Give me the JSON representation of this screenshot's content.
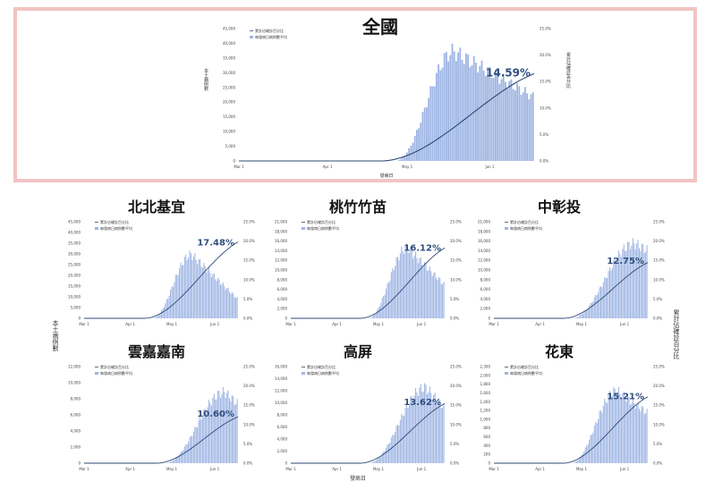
{
  "colors": {
    "bar": "#9db4e3",
    "line": "#2c4a78",
    "pct": "#2f4f7f",
    "frame": "#f2c4c4"
  },
  "shared_labels": {
    "y_left": "本土病例數",
    "y_right": "累計佔確診百分比",
    "x": "發病日"
  },
  "chart_data": [
    {
      "id": "national",
      "type": "bar+line",
      "title": "全國",
      "legend": [
        "累計佔確診百分比",
        "每發病日病例數平均"
      ],
      "ylabel": "本土病例數",
      "y2label": "累計佔確診百分比",
      "xlabel": "發病日",
      "x_ticks": [
        "Mar 1",
        "Apr 1",
        "May 1",
        "Jun 1"
      ],
      "y_ticks": [
        "0",
        "5,000",
        "10,000",
        "15,000",
        "20,000",
        "25,000",
        "30,000",
        "35,000",
        "40,000",
        "45,000"
      ],
      "y2_ticks": [
        "0.0%",
        "5.0%",
        "10.0%",
        "15.0%",
        "20.0%",
        "25.0%"
      ],
      "ylim": [
        0,
        45000
      ],
      "y2lim": [
        0,
        25
      ],
      "peak_value": 40000,
      "peak_x": 0.73,
      "rise_start": 0.53,
      "end_value": 23500,
      "final_pct": 14.59,
      "final_label": "14.59%"
    },
    {
      "id": "bbjy",
      "type": "bar+line",
      "title": "北北基宜",
      "legend": [
        "累計佔確診百分比",
        "每發病日病例數平均"
      ],
      "x_ticks": [
        "Mar 1",
        "Apr 1",
        "May 1",
        "Jun 1"
      ],
      "y_ticks": [
        "0",
        "5,000",
        "10,000",
        "15,000",
        "20,000",
        "25,000",
        "30,000",
        "35,000",
        "40,000",
        "45,000"
      ],
      "y2_ticks": [
        "0.0%",
        "5.0%",
        "10.0%",
        "15.0%",
        "20.0%",
        "25.0%"
      ],
      "ylim": [
        0,
        45000
      ],
      "y2lim": [
        0,
        25
      ],
      "peak_value": 32000,
      "peak_x": 0.7,
      "rise_start": 0.44,
      "end_value": 10000,
      "final_pct": 17.48,
      "final_label": "17.48%"
    },
    {
      "id": "tzzm",
      "type": "bar+line",
      "title": "桃竹竹苗",
      "legend": [
        "累計佔確診百分比",
        "每發病日病例數平均"
      ],
      "x_ticks": [
        "Mar 1",
        "Apr 1",
        "May 1",
        "Jun 1"
      ],
      "y_ticks": [
        "0",
        "2,000",
        "4,000",
        "6,000",
        "8,000",
        "10,000",
        "12,000",
        "14,000",
        "16,000",
        "18,000",
        "21,000"
      ],
      "y2_ticks": [
        "0.0%",
        "5.0%",
        "10.0%",
        "15.0%",
        "20.0%",
        "25.0%"
      ],
      "ylim": [
        0,
        21000
      ],
      "y2lim": [
        0,
        25
      ],
      "peak_value": 16500,
      "peak_x": 0.76,
      "rise_start": 0.5,
      "end_value": 8000,
      "final_pct": 16.12,
      "final_label": "16.12%"
    },
    {
      "id": "zzt",
      "type": "bar+line",
      "title": "中彰投",
      "legend": [
        "累計佔確診百分比",
        "每發病日病例數平均"
      ],
      "x_ticks": [
        "Mar 1",
        "Apr 1",
        "May 1",
        "Jun 1"
      ],
      "y_ticks": [
        "0",
        "2,000",
        "4,000",
        "6,000",
        "8,000",
        "10,000",
        "12,000",
        "14,000",
        "16,000",
        "18,000",
        "21,000"
      ],
      "y2_ticks": [
        "0.0%",
        "5.0%",
        "10.0%",
        "15.0%",
        "20.0%",
        "25.0%"
      ],
      "ylim": [
        0,
        21000
      ],
      "y2lim": [
        0,
        25
      ],
      "peak_value": 17500,
      "peak_x": 0.92,
      "rise_start": 0.5,
      "end_value": 16000,
      "final_pct": 12.75,
      "final_label": "12.75%"
    },
    {
      "id": "yjjn",
      "type": "bar+line",
      "title": "雲嘉嘉南",
      "legend": [
        "累計佔確診百分比",
        "每發病日病例數平均"
      ],
      "x_ticks": [
        "Mar 1",
        "Apr 1",
        "May 1",
        "Jun 1"
      ],
      "y_ticks": [
        "0",
        "2,000",
        "4,000",
        "6,000",
        "8,000",
        "10,000",
        "12,000"
      ],
      "y2_ticks": [
        "0.0%",
        "5.0%",
        "10.0%",
        "15.0%",
        "20.0%",
        "25.0%"
      ],
      "ylim": [
        0,
        12000
      ],
      "y2lim": [
        0,
        25
      ],
      "peak_value": 9500,
      "peak_x": 0.92,
      "rise_start": 0.52,
      "end_value": 8000,
      "final_pct": 10.6,
      "final_label": "10.60%"
    },
    {
      "id": "gp",
      "type": "bar+line",
      "title": "高屏",
      "legend": [
        "累計佔確診百分比",
        "每發病日病例數平均"
      ],
      "x_ticks": [
        "Mar 1",
        "Apr 1",
        "May 1",
        "Jun 1"
      ],
      "y_ticks": [
        "0",
        "2,000",
        "4,000",
        "6,000",
        "8,000",
        "10,000",
        "12,000",
        "14,000",
        "16,000"
      ],
      "y2_ticks": [
        "0.0%",
        "5.0%",
        "10.0%",
        "15.0%",
        "20.0%",
        "25.0%"
      ],
      "ylim": [
        0,
        16000
      ],
      "y2lim": [
        0,
        25
      ],
      "peak_value": 13500,
      "peak_x": 0.88,
      "rise_start": 0.5,
      "end_value": 10000,
      "final_pct": 13.62,
      "final_label": "13.62%"
    },
    {
      "id": "hd",
      "type": "bar+line",
      "title": "花東",
      "legend": [
        "累計佔確診百分比",
        "每發病日病例數平均"
      ],
      "x_ticks": [
        "Mar 1",
        "Apr 1",
        "May 1",
        "Jun 1"
      ],
      "y_ticks": [
        "0",
        "200",
        "400",
        "600",
        "800",
        "1,000",
        "1,200",
        "1,400",
        "1,600",
        "1,800",
        "2,000",
        "2,300"
      ],
      "y2_ticks": [
        "0.0%",
        "5.0%",
        "10.0%",
        "15.0%",
        "20.0%",
        "25.0%"
      ],
      "ylim": [
        0,
        2300
      ],
      "y2lim": [
        0,
        25
      ],
      "peak_value": 1850,
      "peak_x": 0.8,
      "rise_start": 0.5,
      "end_value": 1300,
      "final_pct": 15.21,
      "final_label": "15.21%"
    }
  ]
}
